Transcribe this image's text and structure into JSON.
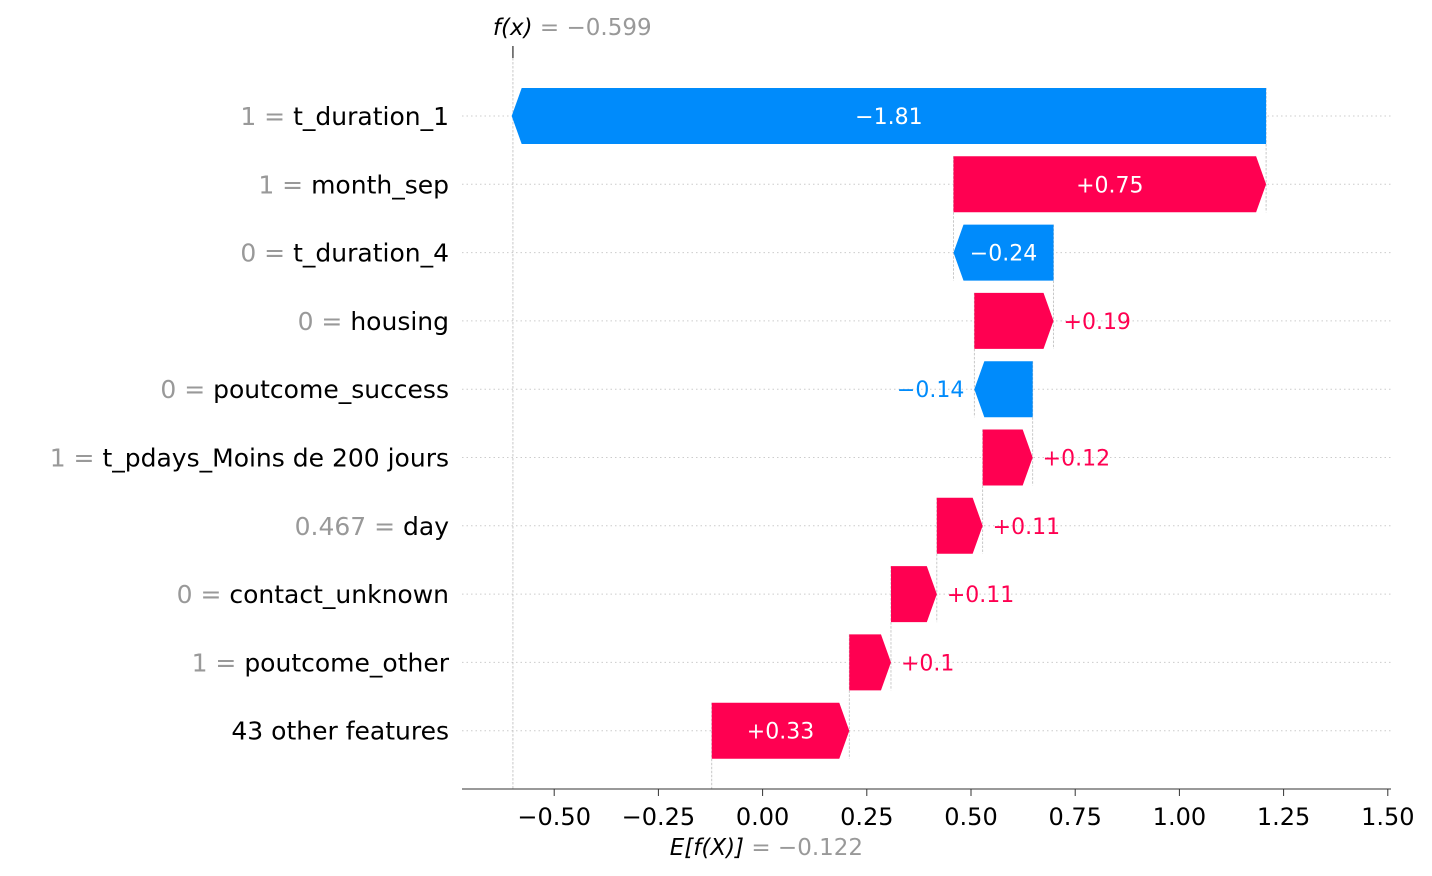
{
  "colors": {
    "positive": "#ff0051",
    "negative": "#008bfb",
    "muted": "#999999",
    "label": "#000000",
    "gridline": "#cccccc",
    "axis": "#333333"
  },
  "chart_data": {
    "type": "waterfall",
    "base_value": -0.122,
    "output_value": -0.599,
    "base_label": {
      "name": "E[f(X)]",
      "eq": "= −0.122"
    },
    "output_label": {
      "name": "f(x)",
      "eq": "= −0.599"
    },
    "xlim": [
      -0.72,
      1.5
    ],
    "xticks": [
      -0.5,
      -0.25,
      0.0,
      0.25,
      0.5,
      0.75,
      1.0,
      1.25,
      1.5
    ],
    "xtick_labels": [
      "−0.50",
      "−0.25",
      "0.00",
      "0.25",
      "0.50",
      "0.75",
      "1.00",
      "1.25",
      "1.50"
    ],
    "features": [
      {
        "value": "1 =",
        "name": "t_duration_1",
        "shap": -1.81,
        "label": "−1.81"
      },
      {
        "value": "1 =",
        "name": "month_sep",
        "shap": 0.75,
        "label": "+0.75"
      },
      {
        "value": "0 =",
        "name": "t_duration_4",
        "shap": -0.24,
        "label": "−0.24"
      },
      {
        "value": "0 =",
        "name": "housing",
        "shap": 0.19,
        "label": "+0.19"
      },
      {
        "value": "0 =",
        "name": "poutcome_success",
        "shap": -0.14,
        "label": "−0.14"
      },
      {
        "value": "1 =",
        "name": "t_pdays_Moins de 200 jours",
        "shap": 0.12,
        "label": "+0.12"
      },
      {
        "value": "0.467 =",
        "name": "day",
        "shap": 0.11,
        "label": "+0.11"
      },
      {
        "value": "0 =",
        "name": "contact_unknown",
        "shap": 0.11,
        "label": "+0.11"
      },
      {
        "value": "1 =",
        "name": "poutcome_other",
        "shap": 0.1,
        "label": "+0.1"
      },
      {
        "value": "",
        "name": "43 other features",
        "shap": 0.33,
        "label": "+0.33"
      }
    ]
  }
}
